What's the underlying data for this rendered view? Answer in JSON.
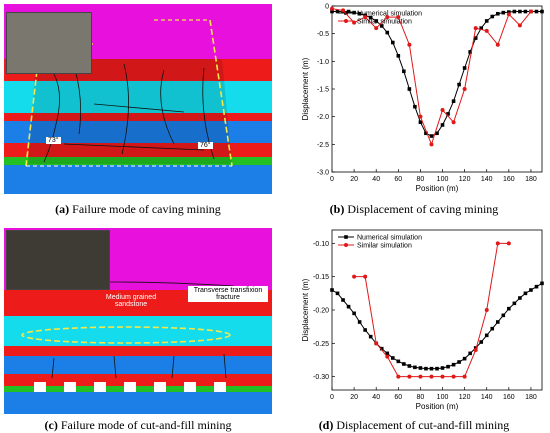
{
  "figures": {
    "a": {
      "letter": "(a)",
      "caption": "Failure mode of caving mining",
      "angle_left": "73°",
      "angle_right": "76°"
    },
    "b": {
      "letter": "(b)",
      "caption": "Displacement of caving mining"
    },
    "c": {
      "letter": "(c)",
      "caption": "Failure mode of cut-and-fill mining",
      "label_medium": "Medium grained sandstone",
      "label_transverse": "Transverse transfixion fracture"
    },
    "d": {
      "letter": "(d)",
      "caption": "Displacement of cut-and-fill mining"
    }
  },
  "colors": {
    "magenta": "#e810dc",
    "red": "#ee1b1b",
    "cyan": "#14dcec",
    "blue": "#1c7fe8",
    "green": "#22c022",
    "black_series": "#000000",
    "red_series": "#e01818"
  },
  "chart_data": [
    {
      "type": "line",
      "xlabel": "Position (m)",
      "ylabel": "Displacement (m)",
      "xlim": [
        0,
        190
      ],
      "ylim": [
        -3.0,
        0
      ],
      "xticks": [
        0,
        20,
        40,
        60,
        80,
        100,
        120,
        140,
        160,
        180
      ],
      "yticks": [
        0,
        -0.5,
        -1.0,
        -1.5,
        -2.0,
        -2.5,
        -3.0
      ],
      "ytick_labels": [
        "0",
        "-0.5",
        "-1.0",
        "-1.5",
        "-2.0",
        "-2.5",
        "-3.0"
      ],
      "legend_position": "top-left",
      "series": [
        {
          "name": "Numerical simulation",
          "color": "#000000",
          "marker": "square",
          "x": [
            0,
            5,
            10,
            15,
            20,
            25,
            30,
            35,
            40,
            45,
            50,
            55,
            60,
            65,
            70,
            75,
            80,
            85,
            90,
            95,
            100,
            105,
            110,
            115,
            120,
            125,
            130,
            135,
            140,
            145,
            150,
            155,
            160,
            165,
            170,
            175,
            180,
            185,
            190
          ],
          "y": [
            -0.1,
            -0.1,
            -0.1,
            -0.1,
            -0.12,
            -0.14,
            -0.17,
            -0.21,
            -0.27,
            -0.36,
            -0.48,
            -0.66,
            -0.9,
            -1.18,
            -1.5,
            -1.82,
            -2.1,
            -2.3,
            -2.35,
            -2.3,
            -2.15,
            -1.95,
            -1.72,
            -1.42,
            -1.12,
            -0.83,
            -0.58,
            -0.4,
            -0.27,
            -0.19,
            -0.14,
            -0.12,
            -0.11,
            -0.1,
            -0.1,
            -0.1,
            -0.1,
            -0.1,
            -0.1
          ]
        },
        {
          "name": "Similar simulation",
          "color": "#e01818",
          "marker": "circle",
          "x": [
            0,
            10,
            20,
            30,
            40,
            50,
            60,
            70,
            80,
            90,
            100,
            110,
            120,
            130,
            140,
            150,
            160,
            170,
            180
          ],
          "y": [
            -0.05,
            -0.08,
            -0.3,
            -0.2,
            -0.4,
            -0.2,
            -0.2,
            -0.7,
            -2.0,
            -2.5,
            -1.88,
            -2.1,
            -1.5,
            -0.4,
            -0.45,
            -0.7,
            -0.15,
            -0.35,
            -0.1
          ]
        }
      ]
    },
    {
      "type": "line",
      "xlabel": "Position (m)",
      "ylabel": "Displacement (m)",
      "xlim": [
        0,
        190
      ],
      "ylim": [
        -0.32,
        -0.08
      ],
      "xticks": [
        0,
        20,
        40,
        60,
        80,
        100,
        120,
        140,
        160,
        180
      ],
      "yticks": [
        -0.1,
        -0.15,
        -0.2,
        -0.25,
        -0.3
      ],
      "ytick_labels": [
        "-0.10",
        "-0.15",
        "-0.20",
        "-0.25",
        "-0.30"
      ],
      "legend_position": "top-left",
      "series": [
        {
          "name": "Numerical simulation",
          "color": "#000000",
          "marker": "square",
          "x": [
            0,
            5,
            10,
            15,
            20,
            25,
            30,
            35,
            40,
            45,
            50,
            55,
            60,
            65,
            70,
            75,
            80,
            85,
            90,
            95,
            100,
            105,
            110,
            115,
            120,
            125,
            130,
            135,
            140,
            145,
            150,
            155,
            160,
            165,
            170,
            175,
            180,
            185,
            190
          ],
          "y": [
            -0.17,
            -0.175,
            -0.185,
            -0.195,
            -0.205,
            -0.218,
            -0.23,
            -0.24,
            -0.25,
            -0.258,
            -0.265,
            -0.272,
            -0.277,
            -0.281,
            -0.284,
            -0.286,
            -0.287,
            -0.288,
            -0.288,
            -0.288,
            -0.287,
            -0.285,
            -0.282,
            -0.278,
            -0.273,
            -0.265,
            -0.257,
            -0.248,
            -0.238,
            -0.228,
            -0.218,
            -0.208,
            -0.198,
            -0.19,
            -0.182,
            -0.175,
            -0.17,
            -0.165,
            -0.16
          ]
        },
        {
          "name": "Similar simulation",
          "color": "#e01818",
          "marker": "circle",
          "x": [
            20,
            30,
            40,
            50,
            60,
            70,
            80,
            90,
            100,
            110,
            120,
            130,
            140,
            150,
            160
          ],
          "y": [
            -0.15,
            -0.15,
            -0.25,
            -0.27,
            -0.3,
            -0.3,
            -0.3,
            -0.3,
            -0.3,
            -0.3,
            -0.3,
            -0.26,
            -0.2,
            -0.1,
            -0.1
          ]
        }
      ]
    }
  ]
}
